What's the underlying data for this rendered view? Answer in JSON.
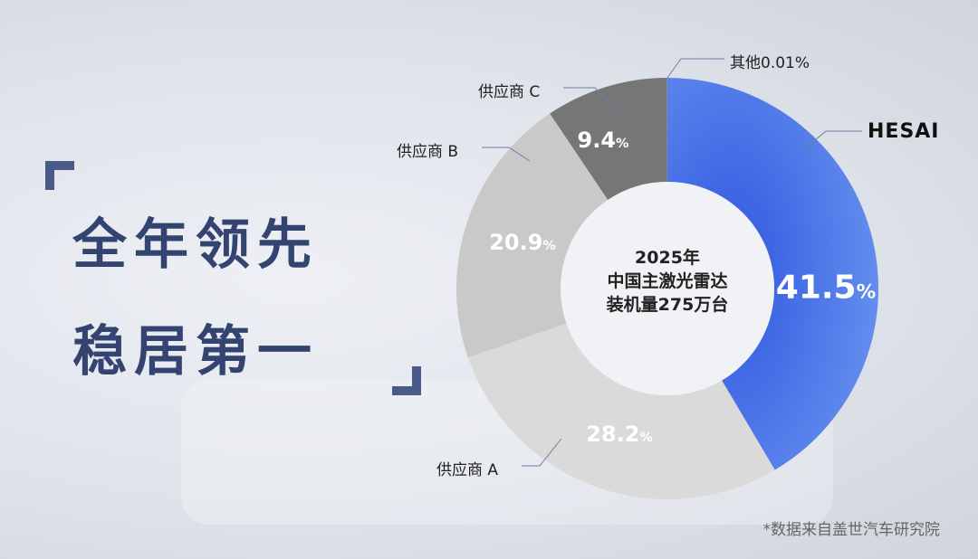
{
  "headline": {
    "line1": "全年领先",
    "line2": "稳居第一"
  },
  "chart_data": {
    "type": "pie",
    "variant": "donut",
    "center_text": [
      "2025年",
      "中国主激光雷达",
      "装机量275万台"
    ],
    "unit": "%",
    "slices": [
      {
        "name": "HESAI",
        "value": 41.5,
        "label": "41.5",
        "color": "#5b86ec"
      },
      {
        "name": "供应商 A",
        "value": 28.2,
        "label": "28.2",
        "color": "#dadada"
      },
      {
        "name": "供应商 B",
        "value": 20.9,
        "label": "20.9",
        "color": "#c9c9c9"
      },
      {
        "name": "供应商 C",
        "value": 9.4,
        "label": "9.4",
        "color": "#767676"
      },
      {
        "name": "其他",
        "value": 0.01,
        "label": "0.01",
        "color": "#bbbbbb"
      }
    ]
  },
  "footnote": "*数据来自盖世汽车研究院",
  "colors": {
    "headline": "#344470",
    "bracket": "#4a5a8a"
  }
}
